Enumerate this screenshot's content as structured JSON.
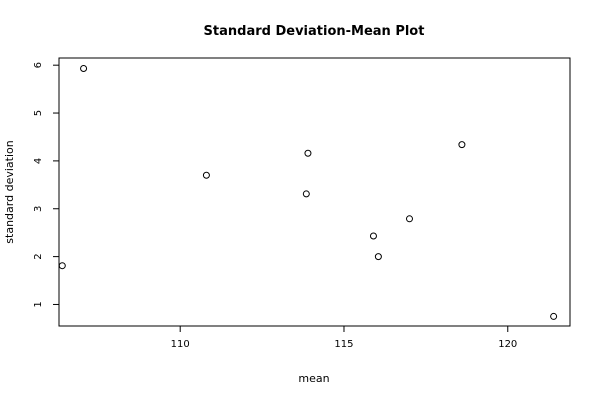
{
  "chart_data": {
    "type": "scatter",
    "title": "Standard Deviation-Mean Plot",
    "xlabel": "mean",
    "ylabel": "standard deviation",
    "xlim": [
      106.3,
      121.9
    ],
    "ylim": [
      0.55,
      6.15
    ],
    "x_ticks": [
      110,
      115,
      120
    ],
    "y_ticks": [
      1,
      2,
      3,
      4,
      5,
      6
    ],
    "grid": false,
    "marker": "open-circle",
    "points": [
      {
        "x": 106.4,
        "y": 1.81
      },
      {
        "x": 107.05,
        "y": 5.93
      },
      {
        "x": 110.8,
        "y": 3.7
      },
      {
        "x": 113.85,
        "y": 3.31
      },
      {
        "x": 113.9,
        "y": 4.16
      },
      {
        "x": 115.9,
        "y": 2.43
      },
      {
        "x": 116.05,
        "y": 2.0
      },
      {
        "x": 117.0,
        "y": 2.79
      },
      {
        "x": 118.6,
        "y": 4.34
      },
      {
        "x": 121.4,
        "y": 0.75
      }
    ]
  }
}
